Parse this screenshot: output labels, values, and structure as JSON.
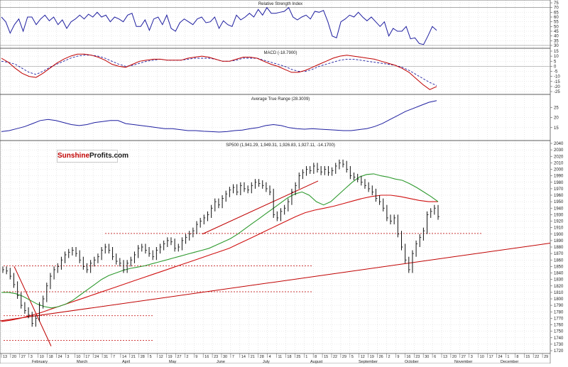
{
  "chart_data": [
    {
      "type": "line",
      "title": "Relative Strength Index",
      "ylim": [
        30,
        75
      ],
      "yticks": [
        "75",
        "70",
        "65",
        "60",
        "55",
        "50",
        "45",
        "40",
        "35",
        "30"
      ],
      "series": [
        {
          "values": [
            60,
            55,
            43,
            52,
            58,
            45,
            60,
            60,
            52,
            58,
            62,
            56,
            60,
            52,
            57,
            48,
            55,
            58,
            62,
            58,
            63,
            60,
            65,
            60,
            62,
            55,
            60,
            58,
            55,
            62,
            64,
            50,
            50,
            57,
            46,
            58,
            60,
            52,
            62,
            48,
            45,
            54,
            58,
            55,
            52,
            58,
            60,
            54,
            55,
            60,
            48,
            56,
            52,
            50,
            62,
            57,
            60,
            64,
            60,
            68,
            62,
            70,
            64,
            64,
            65,
            66,
            70,
            60,
            57,
            60,
            62,
            58,
            66,
            65,
            67,
            55,
            40,
            38,
            55,
            58,
            62,
            60,
            65,
            60,
            56,
            60,
            55,
            50,
            55,
            40,
            48,
            45,
            45,
            50,
            37,
            38,
            32,
            31,
            40,
            50,
            46
          ]
        }
      ]
    },
    {
      "type": "line",
      "title": "MACD (-18.7900)",
      "ylim": [
        -25,
        15
      ],
      "yticks": [
        "15",
        "10",
        "5",
        "0",
        "-5",
        "-10",
        "-15",
        "-20",
        "-25"
      ],
      "series": [
        {
          "color": "#1f1fa0",
          "style": "dashed",
          "values": [
            5,
            4,
            2,
            -2,
            -6,
            -8,
            -5,
            -1,
            2,
            5,
            8,
            10,
            11,
            11,
            10,
            8,
            5,
            2,
            0,
            1,
            3,
            5,
            6,
            7,
            6,
            6,
            6,
            7,
            8,
            8,
            8,
            7,
            5,
            5,
            6,
            8,
            8,
            8,
            6,
            4,
            2,
            0,
            -3,
            -5,
            -5,
            -3,
            0,
            2,
            4,
            6,
            7,
            7,
            6,
            5,
            4,
            3,
            2,
            1,
            -1,
            -4,
            -8,
            -12,
            -16,
            -19
          ]
        },
        {
          "color": "#c00000",
          "style": "solid",
          "values": [
            8,
            4,
            -2,
            -7,
            -10,
            -11,
            -7,
            -2,
            3,
            7,
            10,
            12,
            12,
            11,
            9,
            6,
            2,
            0,
            -1,
            2,
            5,
            6,
            7,
            7,
            6,
            6,
            6,
            8,
            9,
            10,
            9,
            7,
            5,
            5,
            7,
            9,
            9,
            8,
            5,
            2,
            0,
            -3,
            -6,
            -6,
            -4,
            -1,
            2,
            5,
            8,
            10,
            11,
            10,
            9,
            8,
            7,
            5,
            3,
            1,
            -2,
            -6,
            -12,
            -18,
            -23,
            -20
          ]
        }
      ]
    },
    {
      "type": "line",
      "title": "Average True Range (28.3009)",
      "ylim": [
        10,
        30
      ],
      "yticks": [
        "25",
        "20",
        "15"
      ],
      "series": [
        {
          "values": [
            13,
            13.5,
            14.5,
            15.5,
            17,
            18.5,
            19,
            18.5,
            17.5,
            16.5,
            16,
            16.5,
            17.5,
            18,
            18.5,
            18.5,
            17,
            16.5,
            16,
            15.5,
            15,
            14.5,
            14.5,
            14,
            13.5,
            13.5,
            13.2,
            13,
            12.8,
            13,
            13.5,
            13.8,
            14.5,
            15,
            16,
            16.5,
            16,
            15,
            14.5,
            14.2,
            14.5,
            14.2,
            14,
            13.8,
            13.5,
            13.5,
            14,
            14.5,
            15.5,
            17,
            19,
            21,
            23,
            24.5,
            26,
            27.5,
            28.3
          ]
        }
      ]
    },
    {
      "type": "line",
      "title": "SP500 (1,941.29, 1,949.31, 1,926.83, 1,927.11, -14.1700)",
      "ylim": [
        1720,
        2040
      ],
      "yticks": [
        "2040",
        "2030",
        "2020",
        "2010",
        "2000",
        "1990",
        "1980",
        "1970",
        "1960",
        "1950",
        "1940",
        "1930",
        "1920",
        "1910",
        "1900",
        "1890",
        "1880",
        "1870",
        "1860",
        "1850",
        "1840",
        "1830",
        "1820",
        "1810",
        "1800",
        "1790",
        "1780",
        "1770",
        "1760",
        "1750",
        "1740",
        "1730",
        "1720"
      ],
      "x_tick_labels": [
        "13",
        "20",
        "27",
        "3",
        "10",
        "18",
        "24",
        "3",
        "10",
        "17",
        "24",
        "31",
        "7",
        "14",
        "21",
        "28",
        "5",
        "12",
        "19",
        "27",
        "2",
        "9",
        "16",
        "23",
        "30",
        "7",
        "14",
        "21",
        "28",
        "4",
        "11",
        "18",
        "25",
        "1",
        "8",
        "15",
        "22",
        "29",
        "5",
        "12",
        "19",
        "26",
        "2",
        "9",
        "16",
        "23",
        "30",
        "6",
        "13",
        "20",
        "27",
        "3",
        "10",
        "17",
        "24",
        "1",
        "8",
        "15",
        "22",
        "29"
      ],
      "months": [
        "February",
        "March",
        "April",
        "May",
        "June",
        "July",
        "August",
        "September",
        "October",
        "November",
        "December"
      ],
      "series": [
        {
          "name": "close",
          "color": "#1a1a1a",
          "values": [
            1845,
            1843,
            1835,
            1822,
            1805,
            1790,
            1782,
            1775,
            1762,
            1770,
            1790,
            1800,
            1820,
            1835,
            1845,
            1850,
            1860,
            1868,
            1872,
            1875,
            1870,
            1860,
            1850,
            1845,
            1855,
            1860,
            1865,
            1875,
            1880,
            1875,
            1865,
            1858,
            1855,
            1845,
            1855,
            1860,
            1868,
            1878,
            1880,
            1875,
            1870,
            1865,
            1875,
            1880,
            1885,
            1890,
            1888,
            1878,
            1880,
            1890,
            1895,
            1900,
            1905,
            1915,
            1920,
            1925,
            1930,
            1940,
            1950,
            1945,
            1955,
            1962,
            1968,
            1972,
            1965,
            1975,
            1970,
            1968,
            1975,
            1980,
            1978,
            1975,
            1970,
            1965,
            1930,
            1925,
            1935,
            1940,
            1950,
            1965,
            1975,
            1990,
            1995,
            2000,
            1998,
            2005,
            2000,
            1996,
            2000,
            1995,
            1998,
            2005,
            2010,
            2008,
            2000,
            1990,
            1988,
            1985,
            1980,
            1975,
            1970,
            1965,
            1955,
            1950,
            1940,
            1925,
            1920,
            1925,
            1900,
            1880,
            1860,
            1845,
            1870,
            1885,
            1895,
            1905,
            1930,
            1935,
            1940,
            1927
          ]
        },
        {
          "name": "MA green",
          "color": "#2e9a2e",
          "values": [
            1810,
            1810,
            1808,
            1804,
            1798,
            1792,
            1788,
            1786,
            1788,
            1792,
            1798,
            1806,
            1814,
            1822,
            1830,
            1836,
            1840,
            1844,
            1847,
            1849,
            1851,
            1854,
            1857,
            1860,
            1863,
            1866,
            1869,
            1872,
            1875,
            1878,
            1883,
            1888,
            1893,
            1900,
            1908,
            1916,
            1924,
            1932,
            1940,
            1948,
            1956,
            1962,
            1965,
            1960,
            1950,
            1945,
            1950,
            1960,
            1970,
            1980,
            1988,
            1992,
            1993,
            1990,
            1988,
            1985,
            1983,
            1978,
            1972,
            1965,
            1958,
            1950
          ]
        },
        {
          "name": "MA red",
          "color": "#d01010",
          "values": [
            1765,
            1767,
            1770,
            1774,
            1778,
            1783,
            1788,
            1793,
            1798,
            1803,
            1808,
            1813,
            1818,
            1823,
            1828,
            1833,
            1838,
            1843,
            1848,
            1853,
            1858,
            1863,
            1868,
            1873,
            1878,
            1885,
            1892,
            1899,
            1906,
            1913,
            1920,
            1927,
            1933,
            1937,
            1940,
            1943,
            1947,
            1951,
            1955,
            1958,
            1960,
            1960,
            1958,
            1955,
            1952,
            1950,
            1950
          ]
        },
        {
          "name": "long trend",
          "color": "#c00000",
          "values": [
            1766,
            1886
          ]
        }
      ],
      "horizontal_levels": [
        1901,
        1851,
        1811,
        1774,
        1736
      ]
    }
  ],
  "brand": {
    "part1": "Sunshine",
    "part2": "Profits.com"
  }
}
